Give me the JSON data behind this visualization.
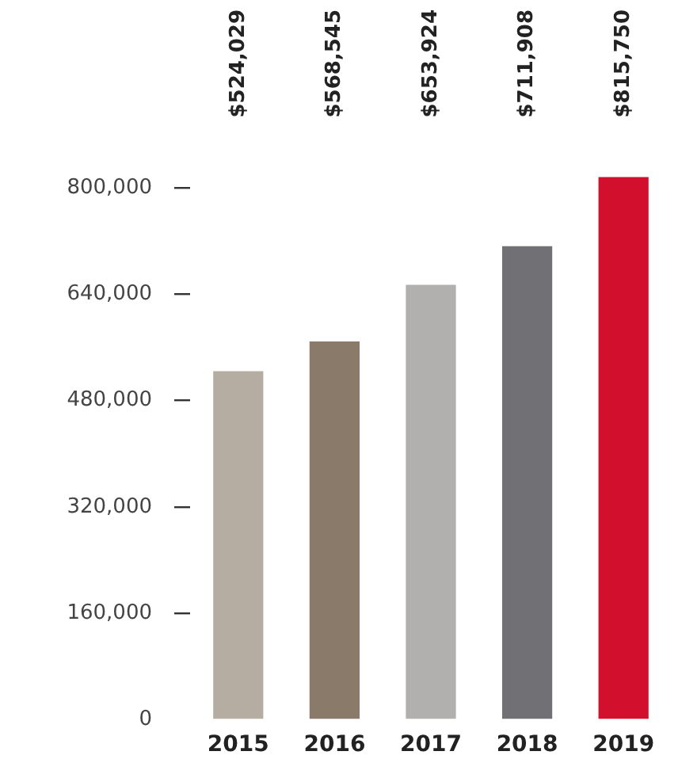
{
  "chart_data": {
    "type": "bar",
    "categories": [
      "2015",
      "2016",
      "2017",
      "2018",
      "2019"
    ],
    "values": [
      524029,
      568545,
      653924,
      711908,
      815750
    ],
    "colors": [
      "#b6ada2",
      "#8a7a69",
      "#b1b0ae",
      "#717074",
      "#d20f2d"
    ],
    "value_labels": [
      "$524,029",
      "$568,545",
      "$653,924",
      "$711,908",
      "$815,750"
    ],
    "ylim": [
      0,
      820000
    ],
    "yticks": [
      0,
      {
        "value": 160000,
        "label": "160,000"
      },
      {
        "value": 320000,
        "label": "320,000"
      },
      {
        "value": 480000,
        "label": "480,000"
      },
      {
        "value": 640000,
        "label": "640,000"
      },
      {
        "value": 800000,
        "label": "800,000"
      }
    ],
    "grid": false,
    "legend": false
  }
}
